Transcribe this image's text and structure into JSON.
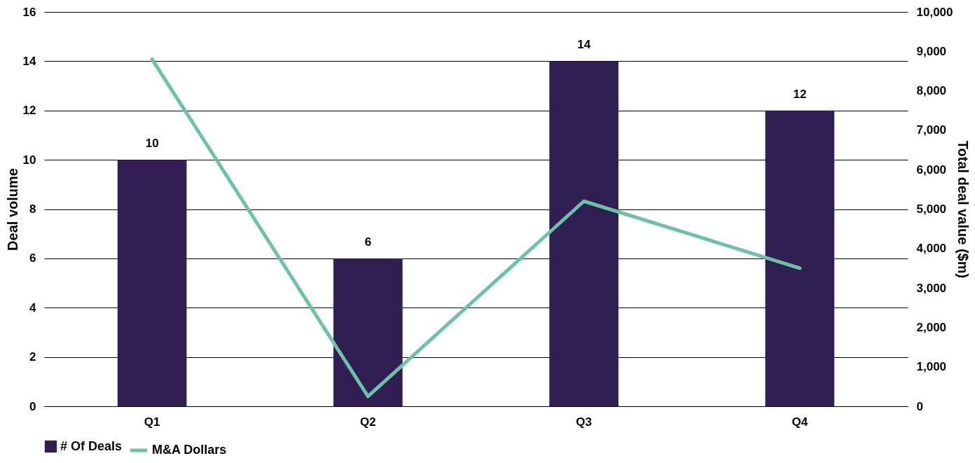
{
  "chart_data": {
    "type": "bar",
    "categories": [
      "Q1",
      "Q2",
      "Q3",
      "Q4"
    ],
    "series": [
      {
        "name": "# Of Deals",
        "color": "#311e52",
        "values": [
          10,
          6,
          14,
          12
        ],
        "value_labels": [
          "10",
          "6",
          "14",
          "12"
        ]
      },
      {
        "name": "M&A Dollars",
        "type": "line",
        "axis": "y2",
        "color": "#6cc2a4",
        "values": [
          8800,
          250,
          5200,
          3500
        ]
      }
    ],
    "ylabel": "Deal volume",
    "y2label": "Total deal value ($m)",
    "ylim": [
      0,
      16
    ],
    "yticks": [
      0,
      2,
      4,
      6,
      8,
      10,
      12,
      14,
      16
    ],
    "y2lim": [
      0,
      10000
    ],
    "y2ticks": [
      0,
      {
        "value": 1000,
        "label": "1,000"
      },
      {
        "value": 2000,
        "label": "2,000"
      },
      {
        "value": 3000,
        "label": "3,000"
      },
      {
        "value": 4000,
        "label": "4,000"
      },
      {
        "value": 5000,
        "label": "5,000"
      },
      {
        "value": 6000,
        "label": "6,000"
      },
      {
        "value": 7000,
        "label": "7,000"
      },
      {
        "value": 8000,
        "label": "8,000"
      },
      {
        "value": 9000,
        "label": "9,000"
      },
      {
        "value": 10000,
        "label": "10,000"
      }
    ],
    "grid": "y",
    "legend": "bottom"
  }
}
